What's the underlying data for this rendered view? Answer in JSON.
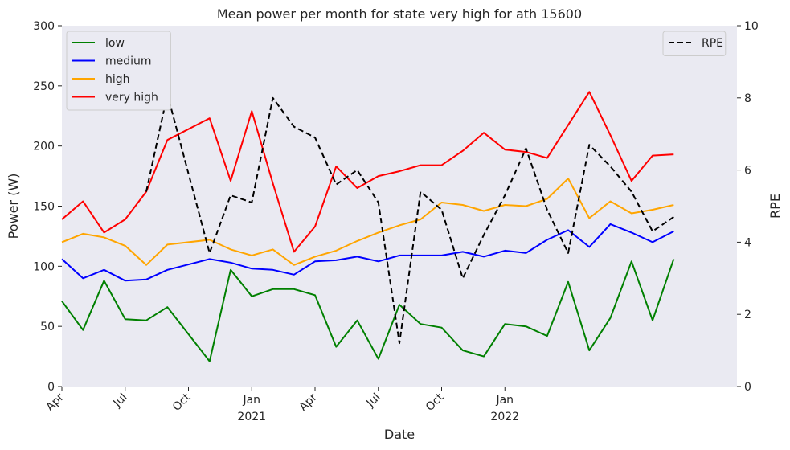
{
  "chart_data": {
    "type": "line",
    "title": "Mean power per month for state very high for ath 15600",
    "xlabel": "Date",
    "ylabel": "Power (W)",
    "y2label": "RPE",
    "ylim": [
      0,
      300
    ],
    "y2lim": [
      0,
      10
    ],
    "yticks": [
      0,
      50,
      100,
      150,
      200,
      250,
      300
    ],
    "y2ticks": [
      0,
      2,
      4,
      6,
      8,
      10
    ],
    "xlim": [
      "2020-04",
      "2022-12"
    ],
    "xticks": [
      {
        "at": "2020-04",
        "label": "Apr",
        "sub": ""
      },
      {
        "at": "2020-07",
        "label": "Jul",
        "sub": ""
      },
      {
        "at": "2020-10",
        "label": "Oct",
        "sub": ""
      },
      {
        "at": "2021-01",
        "label": "Jan",
        "sub": "2021"
      },
      {
        "at": "2021-04",
        "label": "Apr",
        "sub": ""
      },
      {
        "at": "2021-07",
        "label": "Jul",
        "sub": ""
      },
      {
        "at": "2021-10",
        "label": "Oct",
        "sub": ""
      },
      {
        "at": "2022-01",
        "label": "Jan",
        "sub": "2022"
      }
    ],
    "grid": false,
    "legend_left_placement": "top-left",
    "legend_right_placement": "top-right",
    "series": [
      {
        "name": "low",
        "color": "#008000",
        "axis": "left",
        "dash": false,
        "points": [
          [
            "2020-04",
            71
          ],
          [
            "2020-05",
            47
          ],
          [
            "2020-06",
            88
          ],
          [
            "2020-07",
            56
          ],
          [
            "2020-08",
            55
          ],
          [
            "2020-09",
            66
          ],
          [
            "2020-11",
            21
          ],
          [
            "2020-12",
            97
          ],
          [
            "2021-01",
            75
          ],
          [
            "2021-02",
            81
          ],
          [
            "2021-03",
            81
          ],
          [
            "2021-04",
            76
          ],
          [
            "2021-05",
            33
          ],
          [
            "2021-06",
            55
          ],
          [
            "2021-07",
            23
          ],
          [
            "2021-08",
            68
          ],
          [
            "2021-09",
            52
          ],
          [
            "2021-10",
            49
          ],
          [
            "2021-11",
            30
          ],
          [
            "2021-12",
            25
          ],
          [
            "2022-01",
            52
          ],
          [
            "2022-02",
            50
          ],
          [
            "2022-03",
            42
          ],
          [
            "2022-04",
            87
          ],
          [
            "2022-05",
            30
          ],
          [
            "2022-06",
            57
          ],
          [
            "2022-07",
            104
          ],
          [
            "2022-08",
            55
          ],
          [
            "2022-09",
            106
          ]
        ]
      },
      {
        "name": "medium",
        "color": "#0000ff",
        "axis": "left",
        "dash": false,
        "points": [
          [
            "2020-04",
            106
          ],
          [
            "2020-05",
            90
          ],
          [
            "2020-06",
            97
          ],
          [
            "2020-07",
            88
          ],
          [
            "2020-08",
            89
          ],
          [
            "2020-09",
            97
          ],
          [
            "2020-11",
            106
          ],
          [
            "2020-12",
            103
          ],
          [
            "2021-01",
            98
          ],
          [
            "2021-02",
            97
          ],
          [
            "2021-03",
            93
          ],
          [
            "2021-04",
            104
          ],
          [
            "2021-05",
            105
          ],
          [
            "2021-06",
            108
          ],
          [
            "2021-07",
            104
          ],
          [
            "2021-08",
            109
          ],
          [
            "2021-09",
            109
          ],
          [
            "2021-10",
            109
          ],
          [
            "2021-11",
            112
          ],
          [
            "2021-12",
            108
          ],
          [
            "2022-01",
            113
          ],
          [
            "2022-02",
            111
          ],
          [
            "2022-03",
            122
          ],
          [
            "2022-04",
            130
          ],
          [
            "2022-05",
            116
          ],
          [
            "2022-06",
            135
          ],
          [
            "2022-07",
            128
          ],
          [
            "2022-08",
            120
          ],
          [
            "2022-09",
            129
          ]
        ]
      },
      {
        "name": "high",
        "color": "#ffa500",
        "axis": "left",
        "dash": false,
        "points": [
          [
            "2020-04",
            120
          ],
          [
            "2020-05",
            127
          ],
          [
            "2020-06",
            124
          ],
          [
            "2020-07",
            117
          ],
          [
            "2020-08",
            101
          ],
          [
            "2020-09",
            118
          ],
          [
            "2020-11",
            122
          ],
          [
            "2020-12",
            114
          ],
          [
            "2021-01",
            109
          ],
          [
            "2021-02",
            114
          ],
          [
            "2021-03",
            101
          ],
          [
            "2021-04",
            108
          ],
          [
            "2021-05",
            113
          ],
          [
            "2021-06",
            121
          ],
          [
            "2021-07",
            128
          ],
          [
            "2021-08",
            134
          ],
          [
            "2021-09",
            139
          ],
          [
            "2021-10",
            153
          ],
          [
            "2021-11",
            151
          ],
          [
            "2021-12",
            146
          ],
          [
            "2022-01",
            151
          ],
          [
            "2022-02",
            150
          ],
          [
            "2022-03",
            156
          ],
          [
            "2022-04",
            173
          ],
          [
            "2022-05",
            140
          ],
          [
            "2022-06",
            154
          ],
          [
            "2022-07",
            144
          ],
          [
            "2022-08",
            147
          ],
          [
            "2022-09",
            151
          ]
        ]
      },
      {
        "name": "very high",
        "color": "#ff0000",
        "axis": "left",
        "dash": false,
        "points": [
          [
            "2020-04",
            139
          ],
          [
            "2020-05",
            154
          ],
          [
            "2020-06",
            128
          ],
          [
            "2020-07",
            139
          ],
          [
            "2020-08",
            162
          ],
          [
            "2020-09",
            205
          ],
          [
            "2020-11",
            223
          ],
          [
            "2020-12",
            171
          ],
          [
            "2021-01",
            229
          ],
          [
            "2021-02",
            169
          ],
          [
            "2021-03",
            112
          ],
          [
            "2021-04",
            133
          ],
          [
            "2021-05",
            183
          ],
          [
            "2021-06",
            165
          ],
          [
            "2021-07",
            175
          ],
          [
            "2021-08",
            179
          ],
          [
            "2021-09",
            184
          ],
          [
            "2021-10",
            184
          ],
          [
            "2021-11",
            196
          ],
          [
            "2021-12",
            211
          ],
          [
            "2022-01",
            197
          ],
          [
            "2022-02",
            195
          ],
          [
            "2022-03",
            190
          ],
          [
            "2022-05",
            245
          ],
          [
            "2022-06",
            209
          ],
          [
            "2022-07",
            171
          ],
          [
            "2022-08",
            192
          ],
          [
            "2022-09",
            193
          ]
        ]
      },
      {
        "name": "RPE",
        "color": "#000000",
        "axis": "right",
        "dash": true,
        "points": [
          [
            "2020-08",
            5.4
          ],
          [
            "2020-09",
            8.1
          ],
          [
            "2020-11",
            3.7
          ],
          [
            "2020-12",
            5.3
          ],
          [
            "2021-01",
            5.1
          ],
          [
            "2021-02",
            8.0
          ],
          [
            "2021-03",
            7.2
          ],
          [
            "2021-04",
            6.9
          ],
          [
            "2021-05",
            5.6
          ],
          [
            "2021-06",
            6.0
          ],
          [
            "2021-07",
            5.1
          ],
          [
            "2021-08",
            1.2
          ],
          [
            "2021-09",
            5.4
          ],
          [
            "2021-10",
            4.9
          ],
          [
            "2021-11",
            3.0
          ],
          [
            "2021-12",
            4.2
          ],
          [
            "2022-01",
            5.3
          ],
          [
            "2022-02",
            6.6
          ],
          [
            "2022-03",
            4.9
          ],
          [
            "2022-04",
            3.7
          ],
          [
            "2022-05",
            6.7
          ],
          [
            "2022-06",
            6.1
          ],
          [
            "2022-07",
            5.4
          ],
          [
            "2022-08",
            4.3
          ],
          [
            "2022-09",
            4.7
          ]
        ]
      }
    ]
  }
}
